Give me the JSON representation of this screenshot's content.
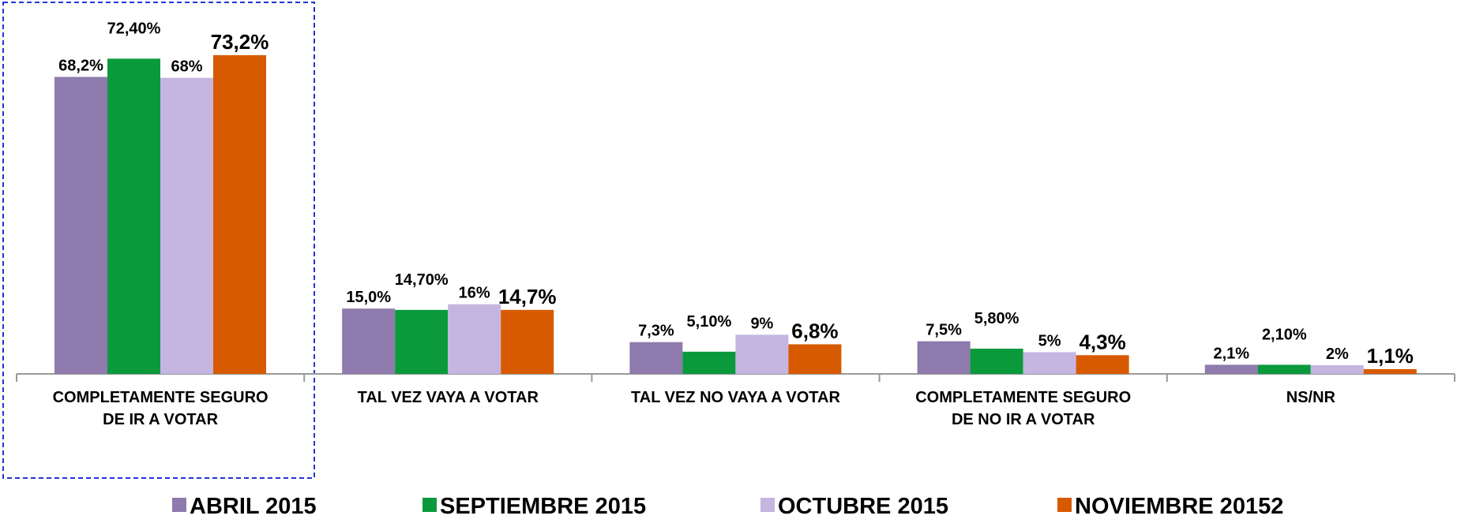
{
  "chart_data": {
    "type": "bar",
    "categories": [
      "COMPLETAMENTE SEGURO DE IR A VOTAR",
      "TAL VEZ VAYA A VOTAR",
      "TAL VEZ NO VAYA A VOTAR",
      "COMPLETAMENTE SEGURO DE NO IR A VOTAR",
      "NS/NR"
    ],
    "series": [
      {
        "name": "ABRIL 2015",
        "color": "#8e7aac",
        "values": [
          68.2,
          15.0,
          7.3,
          7.5,
          2.1
        ],
        "value_labels": [
          "68,2%",
          "15,0%",
          "7,3%",
          "7,5%",
          "2,1%"
        ]
      },
      {
        "name": "SEPTIEMBRE 2015",
        "color": "#0a9a3c",
        "values": [
          72.4,
          14.7,
          5.1,
          5.8,
          2.1
        ],
        "value_labels": [
          "72,40%",
          "14,70%",
          "5,10%",
          "5,80%",
          "2,10%"
        ]
      },
      {
        "name": "OCTUBRE 2015",
        "color": "#c4b6e0",
        "values": [
          68,
          16,
          9,
          5,
          2
        ],
        "value_labels": [
          "68%",
          "16%",
          "9%",
          "5%",
          "2%"
        ]
      },
      {
        "name": "NOVIEMBRE 20152",
        "color": "#d85a00",
        "values": [
          73.2,
          14.7,
          6.8,
          4.3,
          1.1
        ],
        "value_labels": [
          "73,2%",
          "14,7%",
          "6,8%",
          "4,3%",
          "1,1%"
        ]
      }
    ]
  }
}
